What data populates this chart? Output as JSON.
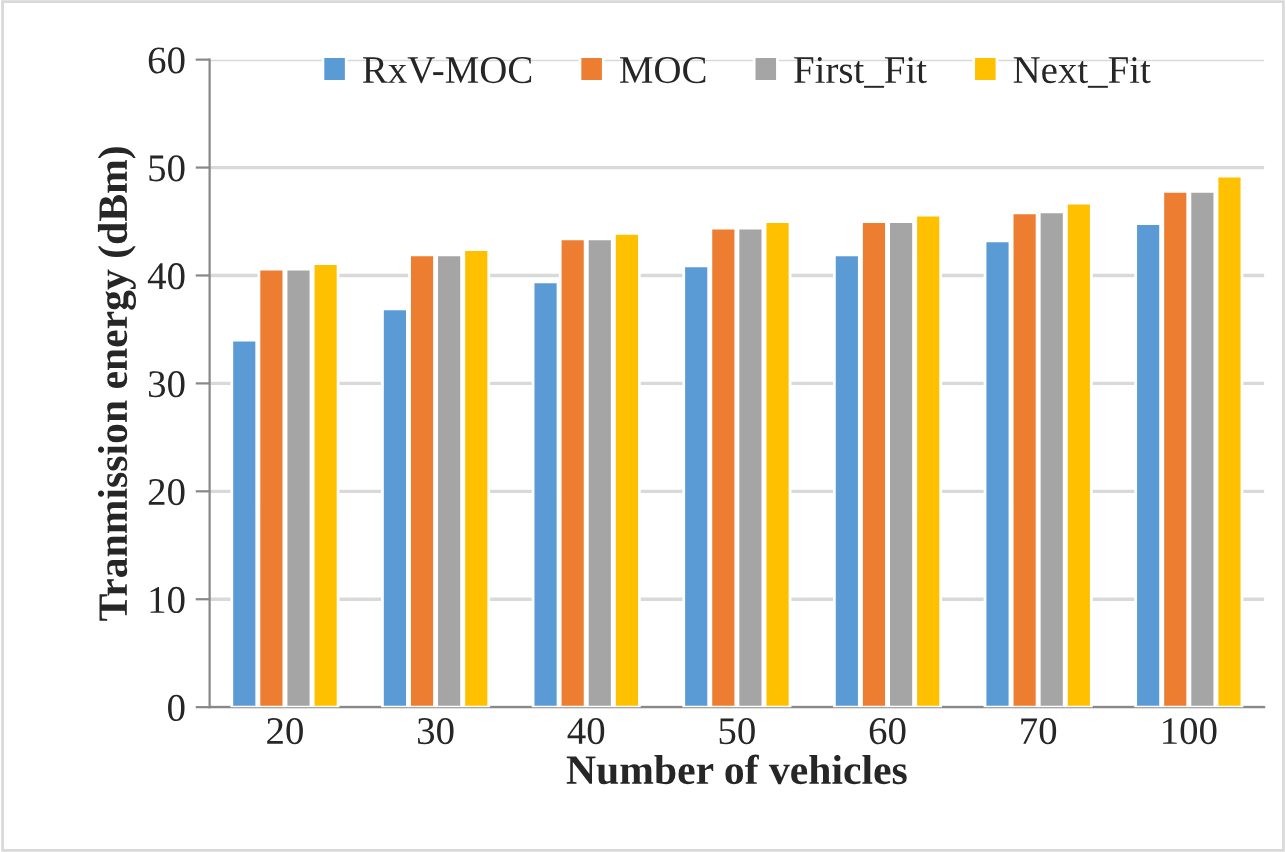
{
  "chart_data": {
    "type": "bar",
    "xlabel": "Number of vehicles",
    "ylabel": "Tranmission energy (dBm)",
    "categories": [
      "20",
      "30",
      "40",
      "50",
      "60",
      "70",
      "100"
    ],
    "series": [
      {
        "name": "RxV-MOC",
        "color": "#5b9bd5",
        "values": [
          34,
          36.9,
          39.4,
          40.9,
          41.9,
          43.2,
          44.8
        ]
      },
      {
        "name": "MOC",
        "color": "#ed7d31",
        "values": [
          40.6,
          41.9,
          43.4,
          44.4,
          45,
          45.8,
          47.8
        ]
      },
      {
        "name": "First_Fit",
        "color": "#a5a5a5",
        "values": [
          40.6,
          41.9,
          43.4,
          44.4,
          45,
          45.9,
          47.8
        ]
      },
      {
        "name": "Next_Fit",
        "color": "#ffc000",
        "values": [
          41.1,
          42.4,
          43.9,
          45,
          45.6,
          46.7,
          49.2
        ]
      }
    ],
    "ylim": [
      0,
      60
    ],
    "yticks": [
      0,
      10,
      20,
      30,
      40,
      50,
      60
    ],
    "grid": "y",
    "legend": "top"
  }
}
